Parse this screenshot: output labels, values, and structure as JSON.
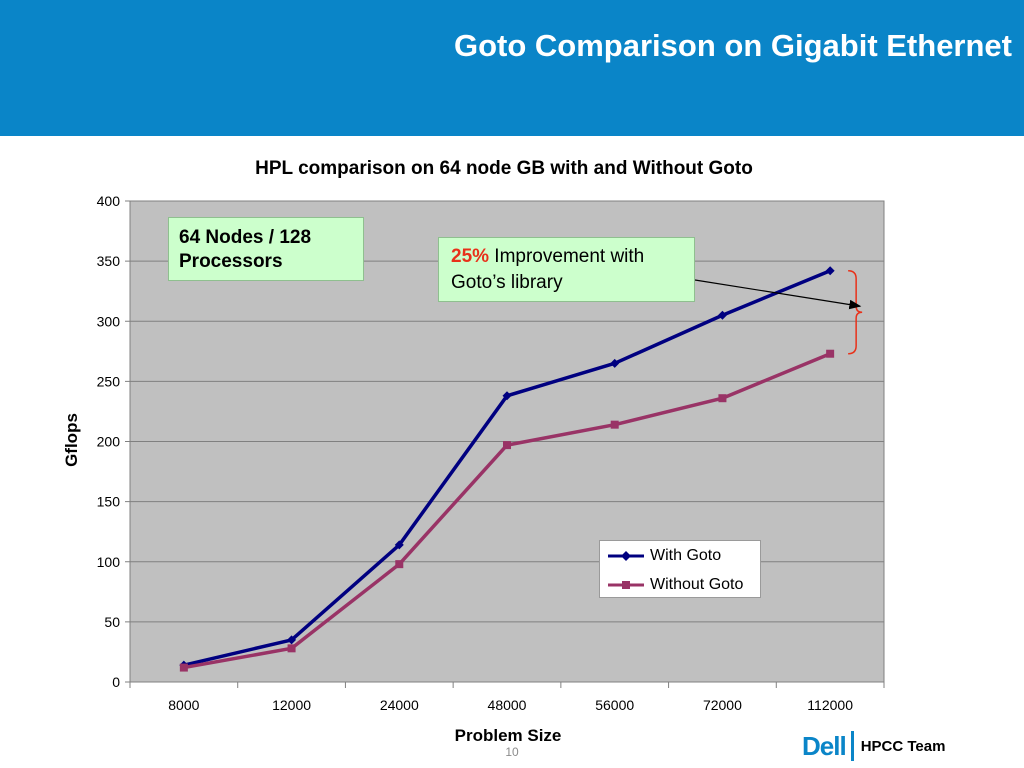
{
  "slide": {
    "title": "Goto Comparison on Gigabit Ethernet",
    "page_number": "10",
    "team": "HPCC Team",
    "logo_text": "Dell"
  },
  "callouts": {
    "nodes": "64 Nodes / 128 Processors",
    "improvement_pct": "25%",
    "improvement_text": " Improvement with Goto’s library"
  },
  "colors": {
    "header": "#0a85c8",
    "with_goto": "#000080",
    "without_goto": "#993366",
    "plot_bg": "#c0c0c0",
    "brace": "#e8311a"
  },
  "chart_data": {
    "type": "line",
    "title": "HPL comparison on 64 node GB with and Without Goto",
    "xlabel": "Problem Size",
    "ylabel": "Gflops",
    "categories": [
      "8000",
      "12000",
      "24000",
      "48000",
      "56000",
      "72000",
      "112000"
    ],
    "yticks": [
      "0",
      "50",
      "100",
      "150",
      "200",
      "250",
      "300",
      "350",
      "400"
    ],
    "ylim": [
      0,
      400
    ],
    "grid": true,
    "legend_position": "bottom-right",
    "series": [
      {
        "name": "With Goto",
        "values": [
          14,
          35,
          114,
          238,
          265,
          305,
          342
        ]
      },
      {
        "name": "Without Goto",
        "values": [
          12,
          28,
          98,
          197,
          214,
          236,
          273
        ]
      }
    ]
  }
}
